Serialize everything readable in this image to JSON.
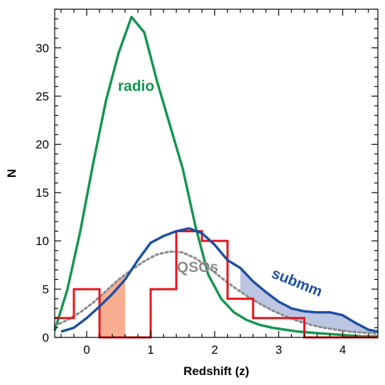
{
  "chart_data": {
    "type": "line",
    "xlabel": "Redshift (z)",
    "ylabel": "N",
    "xlim": [
      -0.5,
      4.55
    ],
    "ylim": [
      0,
      34
    ],
    "x_ticks": [
      0,
      1,
      2,
      3,
      4
    ],
    "y_ticks": [
      0,
      5,
      10,
      15,
      20,
      25,
      30
    ],
    "x_tick_labels": [
      "0",
      "1",
      "2",
      "3",
      "4"
    ],
    "y_tick_labels": [
      "0",
      "5",
      "10",
      "15",
      "20",
      "25",
      "30"
    ],
    "grid": false,
    "annotations": [
      {
        "text": "radio",
        "color": "#149650"
      },
      {
        "text": "QSOs",
        "color": "#8c8c8c"
      },
      {
        "text": "submm",
        "color": "#1e50a0"
      }
    ],
    "series": [
      {
        "name": "radio",
        "style": "line",
        "color": "#149650",
        "x": [
          -0.5,
          -0.3,
          -0.1,
          0.1,
          0.3,
          0.5,
          0.7,
          0.9,
          1.1,
          1.3,
          1.5,
          1.7,
          1.9,
          2.1,
          2.3,
          2.5,
          2.7,
          2.9,
          3.1,
          3.3,
          3.5,
          3.7,
          3.9,
          4.1,
          4.3,
          4.55
        ],
        "y": [
          0.7,
          5.0,
          11.0,
          18.0,
          24.5,
          29.5,
          33.2,
          31.6,
          26.5,
          22.0,
          17.5,
          11.5,
          6.5,
          4.0,
          2.6,
          1.8,
          1.3,
          1.0,
          0.8,
          0.6,
          0.5,
          0.4,
          0.3,
          0.2,
          0.1,
          0.1
        ]
      },
      {
        "name": "submm",
        "style": "line",
        "color": "#1e50a0",
        "fill": "#bcc6e2",
        "x": [
          -0.4,
          -0.2,
          0.0,
          0.2,
          0.4,
          0.6,
          0.8,
          1.0,
          1.2,
          1.4,
          1.6,
          1.8,
          2.0,
          2.2,
          2.4,
          2.6,
          2.8,
          3.0,
          3.2,
          3.4,
          3.6,
          3.8,
          4.0,
          4.2,
          4.4,
          4.55
        ],
        "y": [
          0.6,
          1.0,
          2.0,
          3.2,
          4.5,
          6.0,
          8.0,
          9.8,
          10.5,
          11.0,
          11.3,
          10.8,
          9.6,
          8.0,
          7.2,
          5.8,
          4.7,
          3.7,
          3.0,
          2.7,
          2.6,
          2.6,
          2.3,
          1.5,
          0.8,
          0.6
        ]
      },
      {
        "name": "QSOs",
        "style": "dotted",
        "color": "#8c8c8c",
        "x": [
          -0.5,
          -0.3,
          -0.1,
          0.1,
          0.3,
          0.5,
          0.7,
          0.9,
          1.1,
          1.3,
          1.5,
          1.7,
          1.9,
          2.1,
          2.3,
          2.5,
          2.7,
          2.9,
          3.1,
          3.3,
          3.5,
          3.7,
          3.9,
          4.1,
          4.3,
          4.55
        ],
        "y": [
          1.2,
          1.8,
          2.6,
          3.6,
          4.8,
          6.0,
          7.0,
          7.9,
          8.6,
          8.9,
          8.8,
          8.2,
          7.3,
          6.2,
          5.2,
          4.3,
          3.5,
          2.8,
          2.2,
          1.7,
          1.3,
          1.0,
          0.8,
          0.6,
          0.5,
          0.4
        ]
      },
      {
        "name": "histogram",
        "style": "step",
        "color": "#e8141c",
        "edges": [
          -0.5,
          -0.2,
          0.2,
          0.6,
          1.0,
          1.4,
          1.8,
          2.2,
          2.6,
          3.0,
          3.4,
          3.8,
          4.2,
          4.55
        ],
        "values": [
          2,
          5,
          0,
          0,
          5,
          11,
          10,
          4,
          2,
          2,
          0,
          0,
          0
        ],
        "highlight_fill": "#f9ae92",
        "highlight_range": [
          0.2,
          0.6
        ]
      }
    ]
  }
}
